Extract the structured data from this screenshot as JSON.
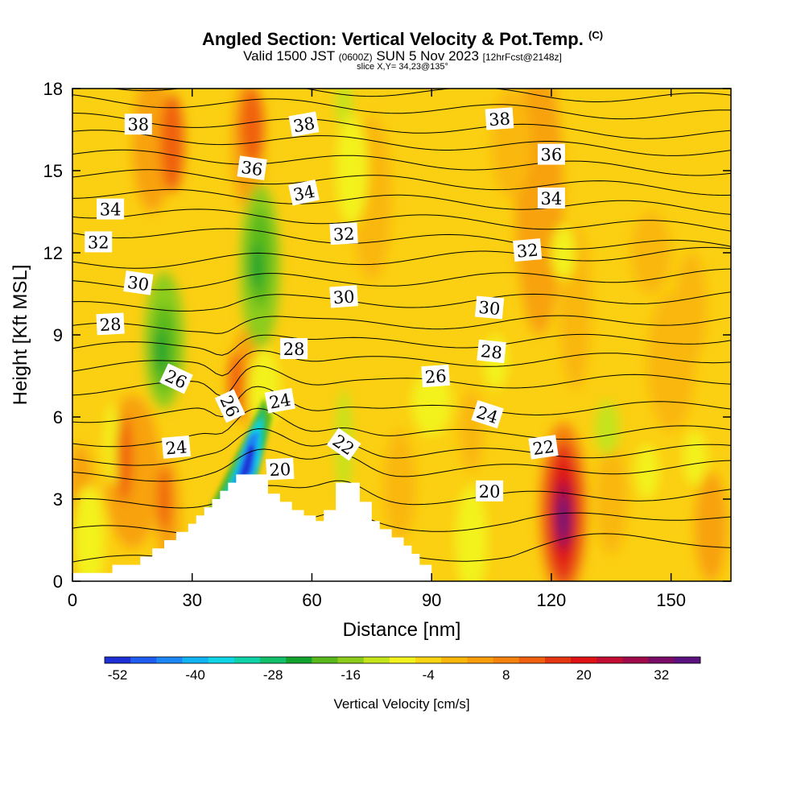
{
  "chart_data": {
    "type": "heatmap",
    "title": "Angled Section: Vertical Velocity & Pot.Temp.",
    "title_mark": "(C)",
    "subtitle_main_a": "Valid 1500 JST",
    "subtitle_small_a": "(0600Z)",
    "subtitle_main_b": "SUN 5 Nov 2023",
    "subtitle_small_b": "[12hrFcst@2148z]",
    "slice_note": "slice X,Y= 34,23@135°",
    "xlabel": "Distance [nm]",
    "ylabel": "Height [Kft MSL]",
    "xlim": [
      0,
      165
    ],
    "ylim": [
      0,
      18
    ],
    "xticks": [
      0,
      30,
      60,
      90,
      120,
      150
    ],
    "yticks": [
      0,
      3,
      6,
      9,
      12,
      15,
      18
    ],
    "colorbar_label": "Vertical Velocity [cm/s]",
    "colorbar_ticks": [
      -52,
      -40,
      -28,
      -16,
      -4,
      8,
      20,
      32
    ],
    "colorbar_colors": [
      "#1e2fd6",
      "#1f5cf0",
      "#1d86f5",
      "#12b3f2",
      "#10d5e6",
      "#0fd3a8",
      "#12c06a",
      "#12a32f",
      "#58b81c",
      "#8ccc1a",
      "#c4e41c",
      "#f3f21e",
      "#fbd414",
      "#fab70a",
      "#f99c0a",
      "#f5820c",
      "#f0600e",
      "#e53612",
      "#df1316",
      "#c20c32",
      "#a00a4a",
      "#7a0c68",
      "#5a137e"
    ],
    "velocity_extremes": [
      {
        "x": 45,
        "z": 4.8,
        "value": -52
      },
      {
        "x": 123,
        "z": 2.4,
        "value": 34
      }
    ],
    "isentrope_labels": [
      {
        "text": "38",
        "x": 16.5,
        "z": 16.7,
        "rot": 0
      },
      {
        "text": "38",
        "x": 58,
        "z": 16.7,
        "rot": -10
      },
      {
        "text": "38",
        "x": 107,
        "z": 16.9,
        "rot": -4
      },
      {
        "text": "36",
        "x": 45,
        "z": 15.1,
        "rot": 8
      },
      {
        "text": "36",
        "x": 120,
        "z": 15.6,
        "rot": 0
      },
      {
        "text": "34",
        "x": 9.5,
        "z": 13.6,
        "rot": 0
      },
      {
        "text": "34",
        "x": 58,
        "z": 14.2,
        "rot": -12
      },
      {
        "text": "34",
        "x": 120,
        "z": 14.0,
        "rot": 0
      },
      {
        "text": "32",
        "x": 6.5,
        "z": 12.4,
        "rot": 0
      },
      {
        "text": "32",
        "x": 68,
        "z": 12.7,
        "rot": -3
      },
      {
        "text": "32",
        "x": 114,
        "z": 12.1,
        "rot": -5
      },
      {
        "text": "30",
        "x": 16.5,
        "z": 10.9,
        "rot": 8
      },
      {
        "text": "30",
        "x": 68,
        "z": 10.4,
        "rot": -4
      },
      {
        "text": "30",
        "x": 104.5,
        "z": 10.0,
        "rot": 5
      },
      {
        "text": "28",
        "x": 9.5,
        "z": 9.4,
        "rot": -3
      },
      {
        "text": "28",
        "x": 55.5,
        "z": 8.5,
        "rot": 0
      },
      {
        "text": "28",
        "x": 105,
        "z": 8.4,
        "rot": 6
      },
      {
        "text": "26",
        "x": 26,
        "z": 7.4,
        "rot": 25
      },
      {
        "text": "26",
        "x": 39.5,
        "z": 6.4,
        "rot": 65
      },
      {
        "text": "26",
        "x": 91,
        "z": 7.5,
        "rot": -4
      },
      {
        "text": "24",
        "x": 52,
        "z": 6.6,
        "rot": -10
      },
      {
        "text": "24",
        "x": 104,
        "z": 6.1,
        "rot": 18
      },
      {
        "text": "24",
        "x": 26,
        "z": 4.9,
        "rot": -5
      },
      {
        "text": "22",
        "x": 68,
        "z": 5.0,
        "rot": 35
      },
      {
        "text": "22",
        "x": 118,
        "z": 4.9,
        "rot": -8
      },
      {
        "text": "20",
        "x": 52,
        "z": 4.1,
        "rot": -3
      },
      {
        "text": "20",
        "x": 104.5,
        "z": 3.3,
        "rot": 0
      }
    ]
  }
}
